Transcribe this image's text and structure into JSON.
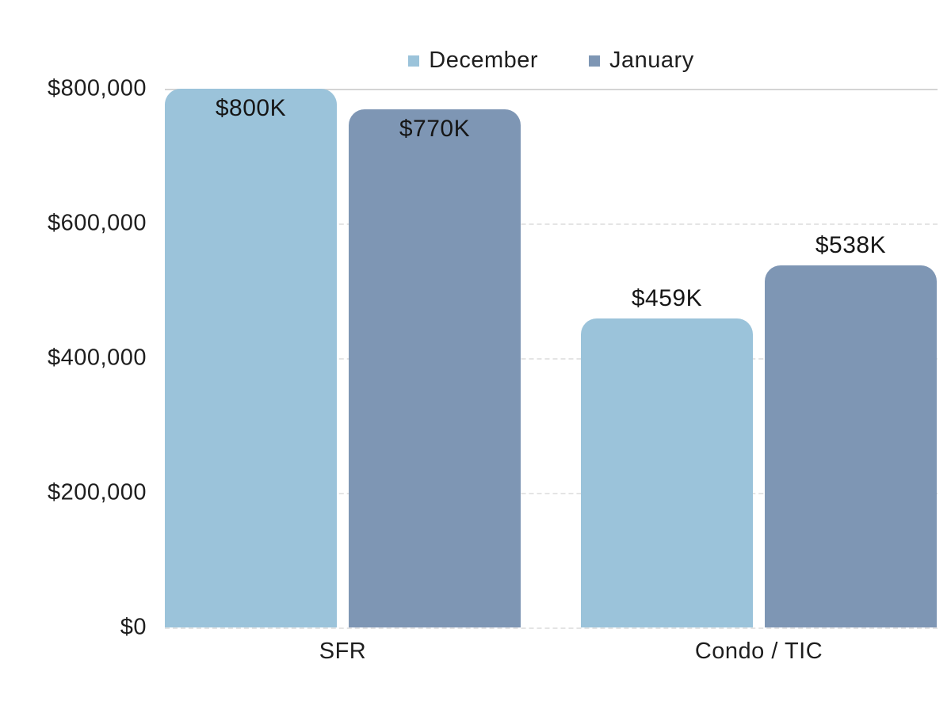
{
  "chart_data": {
    "type": "bar",
    "title": "",
    "xlabel": "",
    "ylabel": "",
    "categories": [
      "SFR",
      "Condo / TIC"
    ],
    "series": [
      {
        "name": "December",
        "color": "#9BC3DA",
        "values": [
          800000,
          459000
        ],
        "bar_labels": [
          "$800K",
          "$459K"
        ]
      },
      {
        "name": "January",
        "color": "#7E96B4",
        "values": [
          770000,
          538000
        ],
        "bar_labels": [
          "$770K",
          "$538K"
        ]
      }
    ],
    "y_ticks": [
      {
        "label": "$0",
        "value": 0
      },
      {
        "label": "$200,000",
        "value": 200000
      },
      {
        "label": "$400,000",
        "value": 400000
      },
      {
        "label": "$600,000",
        "value": 600000
      },
      {
        "label": "$800,000",
        "value": 800000
      }
    ],
    "ylim": [
      0,
      800000
    ],
    "grid": "horizontal-dashed, top line solid",
    "legend_position": "top-center",
    "colors": {
      "december_bar": "#9BC3DA",
      "january_bar": "#7E96B4",
      "text": "#1e1e1e",
      "gridline_solid": "#d4d4d4",
      "gridline_dashed": "#e4e4e4",
      "background": "#ffffff"
    }
  }
}
